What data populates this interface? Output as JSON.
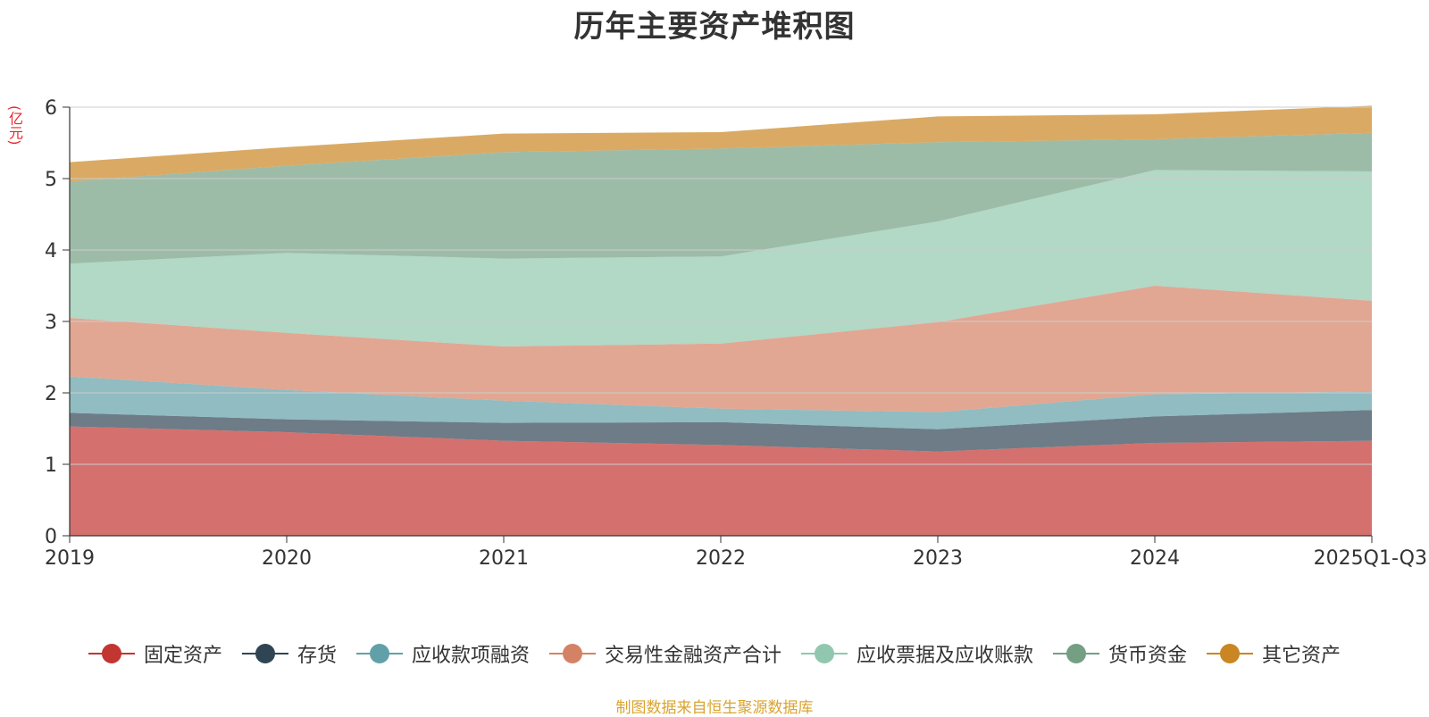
{
  "title": "历年主要资产堆积图",
  "source_note": "制图数据来自恒生聚源数据库",
  "chart_data": {
    "type": "area",
    "stacked": true,
    "title": "历年主要资产堆积图",
    "unit_label": "(亿元)",
    "categories": [
      "2019",
      "2020",
      "2021",
      "2022",
      "2023",
      "2024",
      "2025Q1-Q3"
    ],
    "ylim": [
      0,
      6
    ],
    "yticks": [
      "0",
      "1",
      "2",
      "3",
      "4",
      "5",
      "6"
    ],
    "grid": true,
    "legend_position": "bottom",
    "series": [
      {
        "name": "固定资产",
        "color": "#c23531",
        "values": [
          1.53,
          1.45,
          1.33,
          1.27,
          1.18,
          1.3,
          1.33
        ]
      },
      {
        "name": "存货",
        "color": "#2f4554",
        "values": [
          0.19,
          0.18,
          0.25,
          0.32,
          0.31,
          0.37,
          0.43
        ]
      },
      {
        "name": "应收款项融资",
        "color": "#61a0a8",
        "values": [
          0.51,
          0.41,
          0.31,
          0.19,
          0.24,
          0.31,
          0.26
        ]
      },
      {
        "name": "交易性金融资产合计",
        "color": "#d48265",
        "values": [
          0.82,
          0.8,
          0.76,
          0.91,
          1.26,
          1.52,
          1.27
        ]
      },
      {
        "name": "应收票据及应收账款",
        "color": "#91c7ae",
        "values": [
          0.76,
          1.12,
          1.23,
          1.22,
          1.41,
          1.62,
          1.81
        ]
      },
      {
        "name": "货币资金",
        "color": "#749f83",
        "values": [
          1.15,
          1.22,
          1.49,
          1.51,
          1.11,
          0.43,
          0.54
        ]
      },
      {
        "name": "其它资产",
        "color": "#ca8622",
        "values": [
          0.27,
          0.26,
          0.26,
          0.23,
          0.36,
          0.35,
          0.38
        ]
      }
    ]
  }
}
